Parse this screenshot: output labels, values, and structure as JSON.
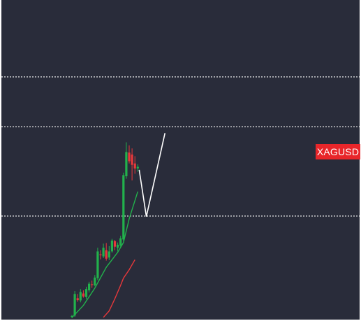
{
  "symbol": "XAGUSD",
  "colors": {
    "background": "#292c3a",
    "candle_up": "#22b14c",
    "candle_down": "#e8383b",
    "ma_fast": "#22b14c",
    "ma_slow": "#e8383b",
    "projection": "#ffffff",
    "level_lines": "#ffffff",
    "badge": "#e8262a"
  },
  "chart_data": {
    "type": "candlestick",
    "symbol": "XAGUSD",
    "grid": false,
    "price_axis_labels": false,
    "x_range": [
      0,
      45
    ],
    "y_range": [
      0,
      100
    ],
    "horizontal_levels": [
      {
        "value": 86.7,
        "style": "dotted"
      },
      {
        "value": 68.8,
        "style": "dotted"
      },
      {
        "value": 36.7,
        "style": "dotted"
      }
    ],
    "candles": [
      {
        "i": 22,
        "open": 0.5,
        "high": 1.2,
        "low": 0.0,
        "close": 0.8
      },
      {
        "i": 23,
        "open": 1.0,
        "high": 9.8,
        "low": 0.5,
        "close": 8.7
      },
      {
        "i": 24,
        "open": 7.2,
        "high": 8.7,
        "low": 5.9,
        "close": 6.5
      },
      {
        "i": 25,
        "open": 6.4,
        "high": 10.5,
        "low": 5.7,
        "close": 9.4
      },
      {
        "i": 26,
        "open": 8.9,
        "high": 10.0,
        "low": 7.4,
        "close": 7.8
      },
      {
        "i": 27,
        "open": 7.6,
        "high": 11.3,
        "low": 6.8,
        "close": 10.5
      },
      {
        "i": 28,
        "open": 10.0,
        "high": 13.1,
        "low": 9.2,
        "close": 12.4
      },
      {
        "i": 29,
        "open": 12.2,
        "high": 13.5,
        "low": 10.9,
        "close": 12.0
      },
      {
        "i": 30,
        "open": 11.8,
        "high": 15.5,
        "low": 11.5,
        "close": 14.6
      },
      {
        "i": 31,
        "open": 14.4,
        "high": 25.3,
        "low": 13.7,
        "close": 24.0
      },
      {
        "i": 32,
        "open": 22.9,
        "high": 24.4,
        "low": 21.1,
        "close": 22.7
      },
      {
        "i": 33,
        "open": 22.2,
        "high": 26.8,
        "low": 21.6,
        "close": 25.3
      },
      {
        "i": 34,
        "open": 24.4,
        "high": 27.0,
        "low": 20.7,
        "close": 21.4
      },
      {
        "i": 35,
        "open": 21.8,
        "high": 25.9,
        "low": 20.9,
        "close": 24.0
      },
      {
        "i": 36,
        "open": 24.0,
        "high": 28.5,
        "low": 23.5,
        "close": 27.9
      },
      {
        "i": 37,
        "open": 27.7,
        "high": 28.1,
        "low": 24.4,
        "close": 25.7
      },
      {
        "i": 38,
        "open": 25.3,
        "high": 27.2,
        "low": 24.0,
        "close": 26.4
      },
      {
        "i": 39,
        "open": 26.1,
        "high": 29.6,
        "low": 25.5,
        "close": 28.7
      },
      {
        "i": 40,
        "open": 28.3,
        "high": 52.3,
        "low": 27.7,
        "close": 51.4
      },
      {
        "i": 41,
        "open": 51.0,
        "high": 63.2,
        "low": 50.1,
        "close": 59.7
      },
      {
        "i": 42,
        "open": 59.5,
        "high": 62.1,
        "low": 55.6,
        "close": 56.4
      },
      {
        "i": 43,
        "open": 58.8,
        "high": 61.0,
        "low": 49.5,
        "close": 55.1
      },
      {
        "i": 44,
        "open": 55.6,
        "high": 58.2,
        "low": 51.9,
        "close": 53.8
      },
      {
        "i": 45,
        "open": 53.8,
        "high": 55.3,
        "low": 52.6,
        "close": 54.4
      }
    ],
    "moving_averages": [
      {
        "color": "green",
        "points": [
          [
            22,
            0.2
          ],
          [
            26,
            4.6
          ],
          [
            30,
            10.8
          ],
          [
            34,
            18.3
          ],
          [
            38,
            23.7
          ],
          [
            40,
            27.2
          ],
          [
            42,
            35.7
          ],
          [
            45,
            45.5
          ]
        ]
      },
      {
        "color": "red",
        "points": [
          [
            33,
            0.3
          ],
          [
            35,
            2.6
          ],
          [
            37,
            7.0
          ],
          [
            39,
            11.8
          ],
          [
            40,
            14.4
          ],
          [
            42,
            17.4
          ],
          [
            44,
            21.0
          ]
        ]
      }
    ],
    "projection_path": [
      [
        45.5,
        53.3
      ],
      [
        48,
        36.5
      ],
      [
        54.5,
        66.5
      ]
    ]
  }
}
